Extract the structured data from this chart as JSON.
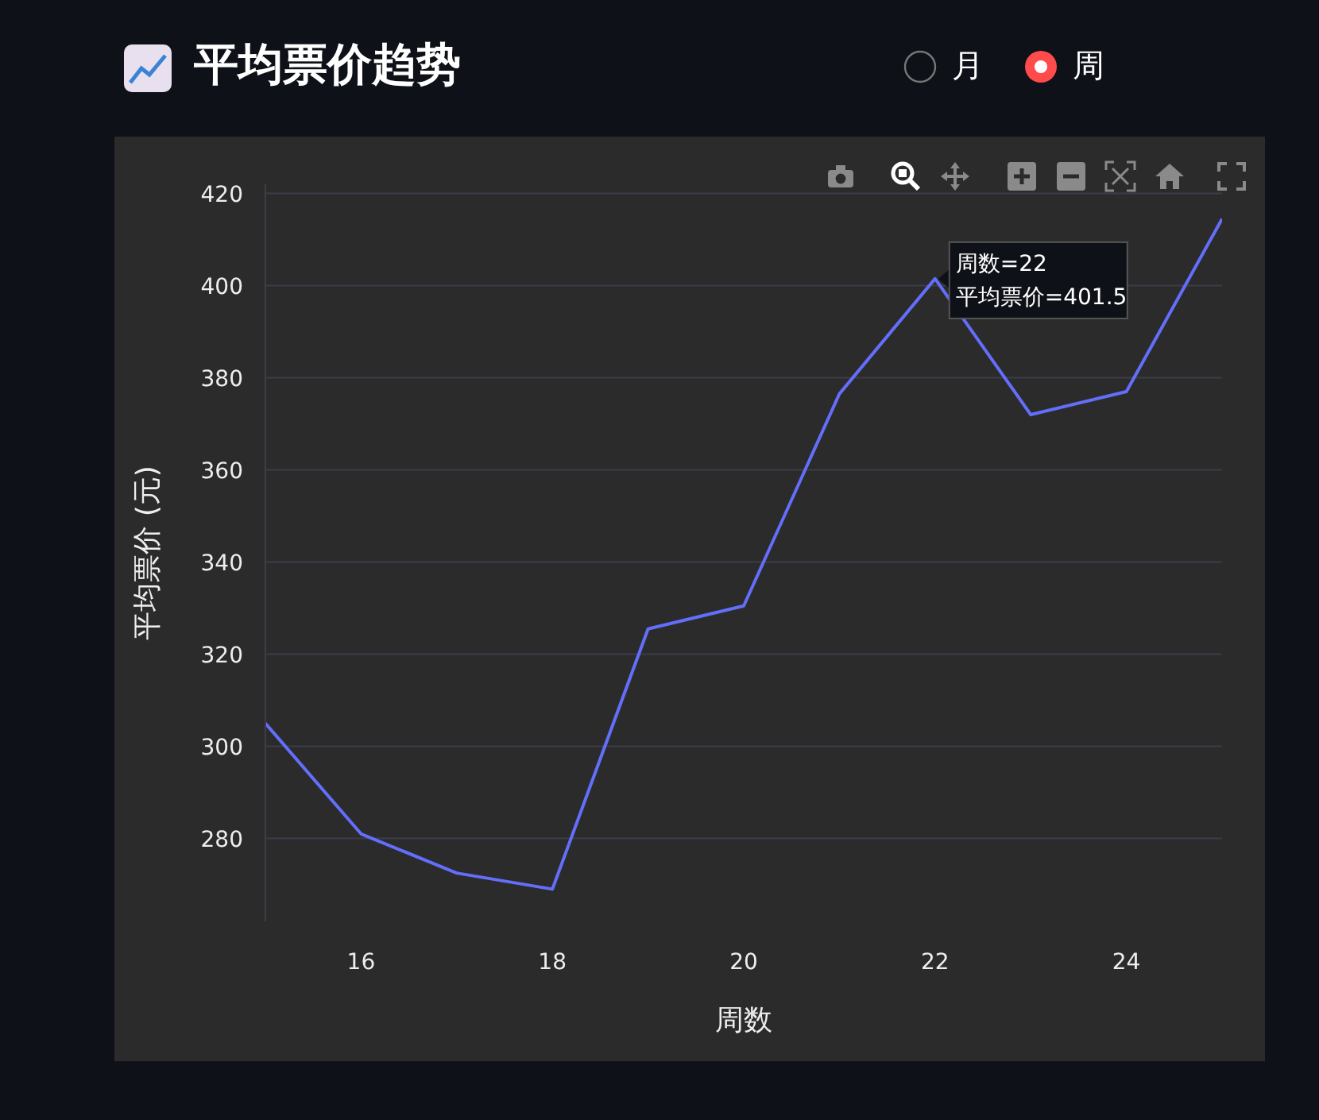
{
  "chart_data": {
    "type": "line",
    "title": "平均票价趋势",
    "xlabel": "周数",
    "ylabel": "平均票价 (元)",
    "x": [
      15,
      16,
      17,
      18,
      19,
      20,
      21,
      22,
      23,
      24,
      25
    ],
    "series": [
      {
        "color": "#636efa",
        "values": [
          305,
          281,
          272.5,
          269,
          325.5,
          330.5,
          376.5,
          401.5,
          372,
          377,
          414.5
        ]
      }
    ],
    "xlim": [
      15,
      25
    ],
    "xticks": [
      16,
      18,
      20,
      22,
      24
    ],
    "ylim": [
      262,
      422
    ],
    "yticks": [
      280,
      300,
      320,
      340,
      360,
      380,
      400,
      420
    ],
    "grid": "y",
    "legend": false,
    "annotations": [
      "月",
      "周",
      {
        "text": "周数=22\n平均票价=401.5",
        "x": 22,
        "y": 401.5
      }
    ]
  }
}
